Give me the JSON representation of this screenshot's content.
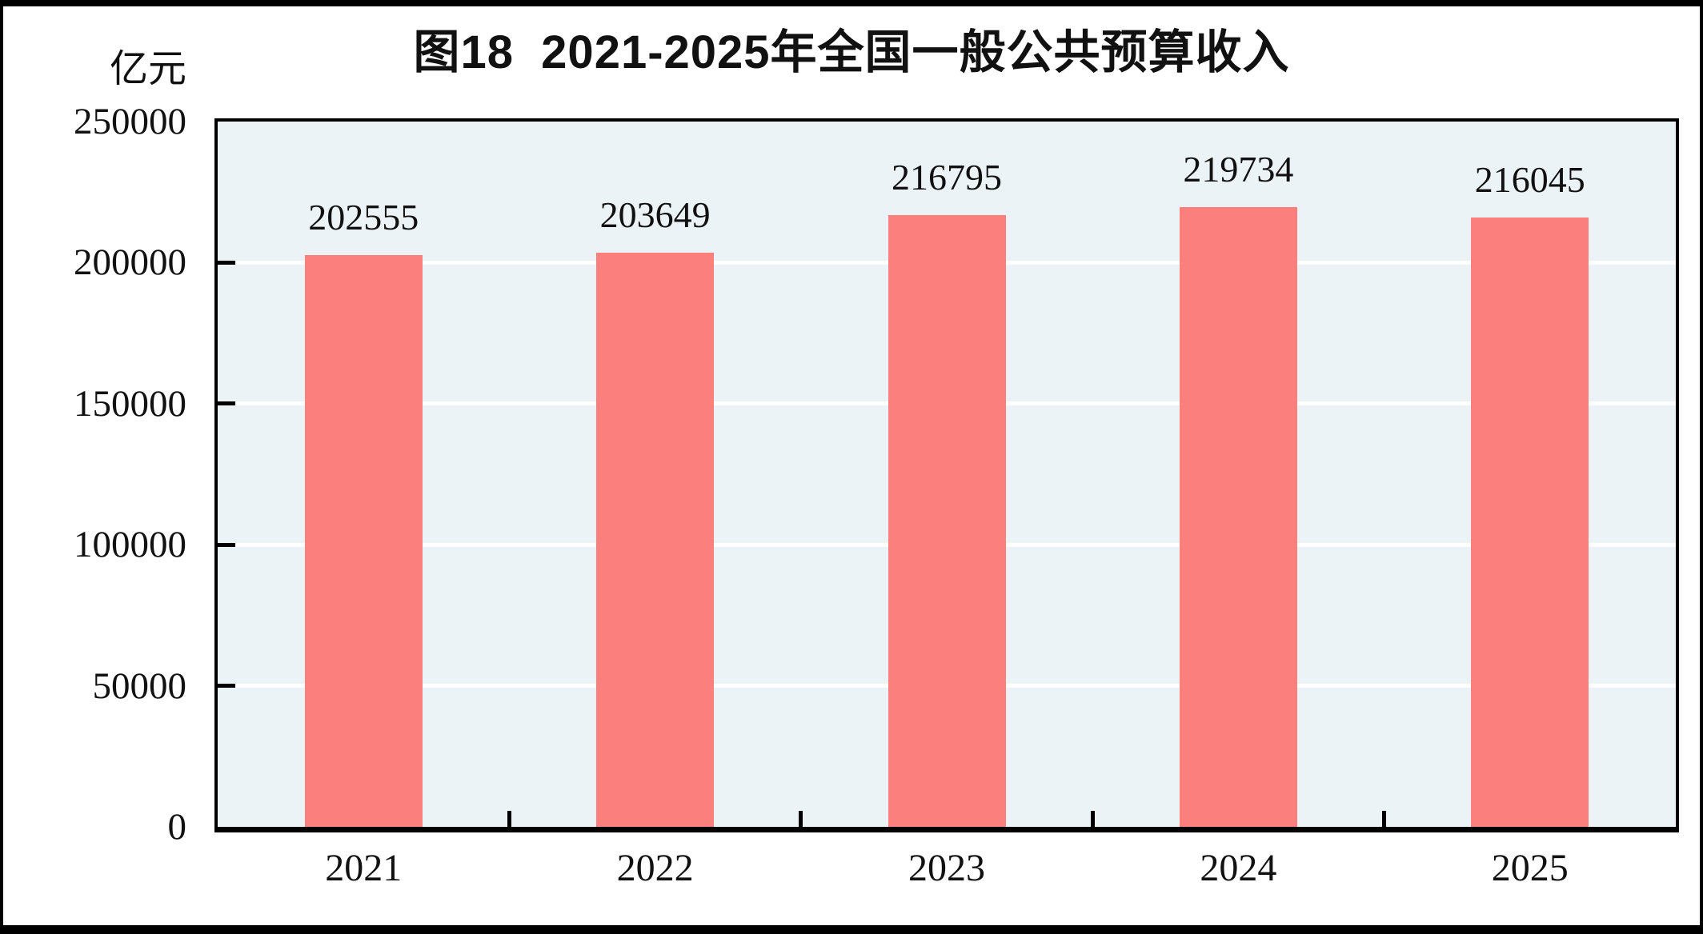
{
  "figure": {
    "title": "图18  2021-2025年全国一般公共预算收入",
    "unit_label": "亿元"
  },
  "chart_data": {
    "type": "bar",
    "title": "图18  2021-2025年全国一般公共预算收入",
    "categories": [
      "2021",
      "2022",
      "2023",
      "2024",
      "2025"
    ],
    "values": [
      202555,
      203649,
      216795,
      219734,
      216045
    ],
    "data_labels": [
      "202555",
      "203649",
      "216795",
      "219734",
      "216045"
    ],
    "xlabel": "",
    "ylabel": "亿元",
    "ylim": [
      0,
      250000
    ],
    "yticks": [
      0,
      50000,
      100000,
      150000,
      200000,
      250000
    ],
    "ytick_labels": [
      "0",
      "50000",
      "100000",
      "150000",
      "200000",
      "250000"
    ],
    "gridlines": [
      50000,
      100000,
      150000,
      200000
    ],
    "grid": "horizontal-white-on-shaded-plot",
    "legend": "none",
    "bar_color": "#fb7f7d",
    "plot_background": "#ecf3f7",
    "gridline_color": "#ffffff",
    "frame_color": "#000000",
    "text_color": "#111111"
  }
}
